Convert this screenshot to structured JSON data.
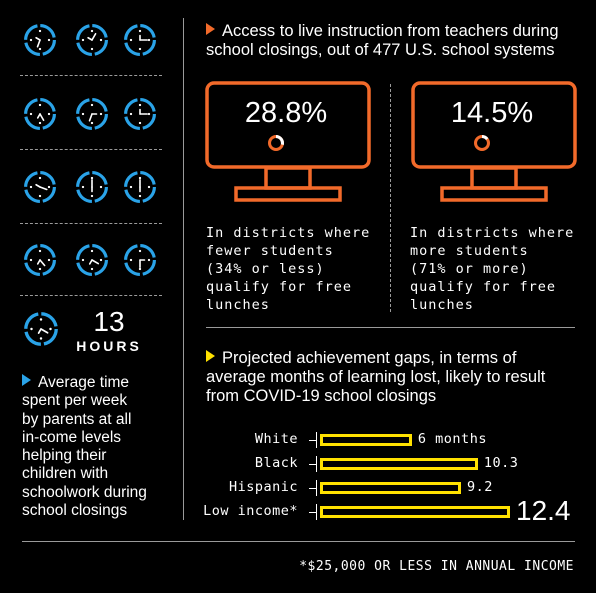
{
  "colors": {
    "clock_blue": "#2aa3e8",
    "monitor_orange": "#f26a2a",
    "bar_yellow": "#ffe100",
    "rule_gray": "#9a9a9a"
  },
  "left_panel": {
    "clock_rows": 4,
    "clocks_per_row": 3,
    "big_number": "13",
    "unit": "HOURS",
    "caption": "Average time spent per week by parents at all in-come levels helping their children with schoolwork during school closings",
    "caption_lines": [
      "Average time",
      "spent per week",
      "by parents at all",
      "in-come levels",
      "helping their",
      "children with",
      "schoolwork during",
      "school closings"
    ]
  },
  "section1": {
    "heading_lines": [
      "Access to live instruction from teachers during",
      "school closings, out of 477 U.S. school systems"
    ],
    "panels": [
      {
        "value": "28.8%",
        "fraction": 0.288,
        "desc_lines": [
          "In districts where",
          "fewer students",
          "(34% or less)",
          "qualify for free",
          "lunches"
        ]
      },
      {
        "value": "14.5%",
        "fraction": 0.145,
        "desc_lines": [
          "In districts where",
          "more students",
          "(71% or more)",
          "qualify for free",
          "lunches"
        ]
      }
    ]
  },
  "section2": {
    "heading_lines": [
      "Projected achievement gaps, in terms of",
      "average months of learning lost, likely to result",
      "from COVID-19 school closings"
    ]
  },
  "chart_data": {
    "type": "bar",
    "orientation": "horizontal",
    "categories": [
      "White",
      "Black",
      "Hispanic",
      "Low income*"
    ],
    "values": [
      6,
      10.3,
      9.2,
      12.4
    ],
    "value_labels": [
      "6 months",
      "10.3",
      "9.2",
      "12.4"
    ],
    "title": "Projected achievement gaps, in terms of average months of learning lost, likely to result from COVID-19 school closings"
  },
  "footnote": "*$25,000 OR LESS IN ANNUAL INCOME"
}
